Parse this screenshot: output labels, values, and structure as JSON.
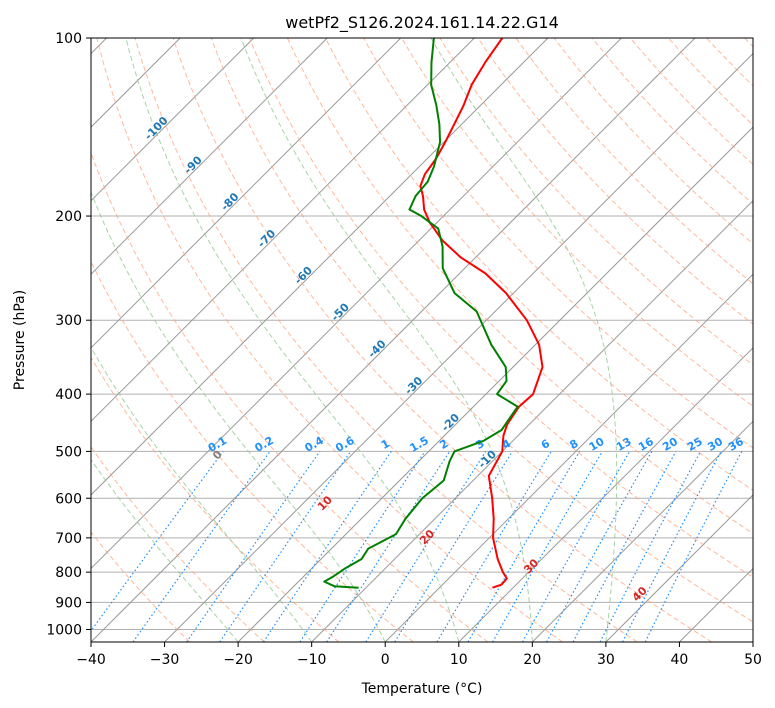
{
  "chart_data": {
    "type": "line",
    "title": "wetPf2_S126.2024.161.14.22.G14",
    "xlabel": "Temperature (°C)",
    "ylabel": "Pressure (hPa)",
    "xlim": [
      -40,
      50
    ],
    "ylim": [
      1050,
      100
    ],
    "y_scale": "log",
    "x_ticks": [
      -40,
      -30,
      -20,
      -10,
      0,
      10,
      20,
      30,
      40,
      50
    ],
    "y_ticks": [
      100,
      200,
      300,
      400,
      500,
      600,
      700,
      800,
      900,
      1000
    ],
    "grid": true,
    "colors": {
      "temperature": "#ff0000",
      "dewpoint": "#008000",
      "skewed_isotherm": "#999999",
      "dry_adiabat": "#ffa07a",
      "moist_adiabat": "#90c890",
      "mixing_ratio": "#1e90ff",
      "isotherm_label": "#1f77b4",
      "temp_label": "#d62728",
      "zero_label": "#7f7f7f"
    },
    "series": [
      {
        "key": "temperature",
        "pressure": [
          850,
          840,
          820,
          800,
          760,
          700,
          650,
          600,
          550,
          500,
          470,
          450,
          420,
          400,
          360,
          330,
          300,
          270,
          250,
          235,
          220,
          205,
          195,
          185,
          178,
          170,
          160,
          150,
          140,
          130,
          120,
          110,
          100
        ],
        "values": [
          7.2,
          8.0,
          7.9,
          6.5,
          4.0,
          0.5,
          -2.0,
          -5.0,
          -8.5,
          -10.0,
          -12.0,
          -13.0,
          -13.8,
          -13.6,
          -16.0,
          -19.5,
          -24.5,
          -31.0,
          -36.5,
          -42.0,
          -46.8,
          -51.0,
          -53.5,
          -55.5,
          -57.2,
          -58.2,
          -58.8,
          -59.8,
          -61.0,
          -62.3,
          -64.0,
          -65.2,
          -66.2
        ]
      },
      {
        "key": "dewpoint",
        "pressure": [
          850,
          845,
          830,
          815,
          790,
          760,
          730,
          690,
          650,
          600,
          560,
          520,
          500,
          480,
          460,
          420,
          400,
          380,
          360,
          330,
          290,
          270,
          245,
          225,
          210,
          200,
          195,
          185,
          175,
          165,
          150,
          140,
          130,
          120,
          110,
          100
        ],
        "values": [
          -11.0,
          -14.5,
          -16.5,
          -16.0,
          -15.5,
          -14.5,
          -15.0,
          -13.2,
          -14.0,
          -14.5,
          -14.0,
          -15.8,
          -16.5,
          -14.0,
          -13.0,
          -14.0,
          -18.5,
          -19.0,
          -21.0,
          -26.0,
          -32.5,
          -38.0,
          -43.0,
          -46.0,
          -49.0,
          -53.0,
          -55.5,
          -56.5,
          -56.8,
          -58.0,
          -60.5,
          -63.0,
          -66.0,
          -69.5,
          -72.5,
          -75.5
        ]
      }
    ],
    "isotherm_labels": [
      "-100",
      "-90",
      "-80",
      "-70",
      "-60",
      "-50",
      "-40",
      "-30",
      "-20",
      "-10"
    ],
    "mixing_ratio_labels": [
      "0.1",
      "0.2",
      "0.4",
      "0.6",
      "1",
      "1.5",
      "2",
      "3",
      "4",
      "6",
      "8",
      "10",
      "13",
      "16",
      "20",
      "25",
      "30",
      "36"
    ],
    "dry_adiabat_labels": [
      "0",
      "10",
      "20",
      "30",
      "40"
    ]
  }
}
